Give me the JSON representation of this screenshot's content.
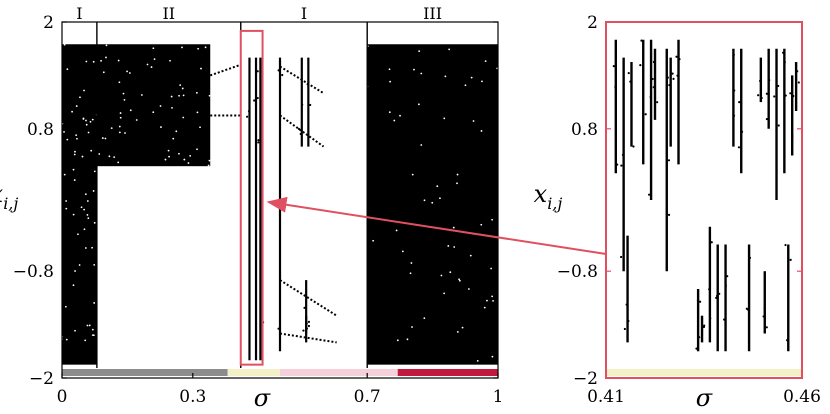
{
  "chart_data": [
    {
      "type": "scatter",
      "title": "",
      "xlabel": "σ",
      "ylabel": "x",
      "ylabel_subscript": "i,j",
      "xlim": [
        0,
        1
      ],
      "ylim": [
        -2,
        2
      ],
      "xticks": [
        {
          "value": 0,
          "label": "0"
        },
        {
          "value": 0.3,
          "label": "0.3"
        },
        {
          "value": 0.7,
          "label": "0.7"
        },
        {
          "value": 1,
          "label": "1"
        }
      ],
      "yticks": [
        {
          "value": 2,
          "label": "2"
        },
        {
          "value": 0.8,
          "label": "0.8"
        },
        {
          "value": -0.8,
          "label": "−0.8"
        },
        {
          "value": -2,
          "label": "−2"
        }
      ],
      "regions": [
        {
          "label": "I",
          "x_start": 0,
          "x_end": 0.08
        },
        {
          "label": "II",
          "x_start": 0.08,
          "x_end": 0.41
        },
        {
          "label": "I",
          "x_start": 0.41,
          "x_end": 0.7
        },
        {
          "label": "III",
          "x_start": 0.7,
          "x_end": 1
        }
      ],
      "region_boundaries": [
        0.08,
        0.41,
        0.7
      ],
      "color_bar": [
        {
          "x_start": 0,
          "x_end": 0.38,
          "color": "#8c8c8c"
        },
        {
          "x_start": 0.38,
          "x_end": 0.5,
          "color": "#f3f0c8"
        },
        {
          "x_start": 0.5,
          "x_end": 0.77,
          "color": "#f5cfd9"
        },
        {
          "x_start": 0.77,
          "x_end": 1,
          "color": "#c2193f"
        }
      ],
      "zoom_box": {
        "x_start": 0.41,
        "x_end": 0.46,
        "y_start": -1.85,
        "y_end": 1.9
      },
      "bands": [
        {
          "x_start": 0,
          "x_end": 0.08,
          "y_low": -1.85,
          "y_high": 1.75
        },
        {
          "x_start": 0.08,
          "x_end": 0.34,
          "y_low": 0.38,
          "y_high": 1.75
        },
        {
          "x_start": 0.7,
          "x_end": 1,
          "y_low": -1.85,
          "y_high": 1.75
        }
      ],
      "lines": [
        {
          "x_start": 0.34,
          "x_end": 0.41,
          "y_start": 1.4,
          "y_end": 1.52
        },
        {
          "x_start": 0.34,
          "x_end": 0.41,
          "y_start": 0.95,
          "y_end": 0.95
        },
        {
          "x_start": 0.5,
          "x_end": 0.6,
          "y_start": 1.5,
          "y_end": 1.2
        },
        {
          "x_start": 0.5,
          "x_end": 0.6,
          "y_start": 0.95,
          "y_end": 0.6
        },
        {
          "x_start": 0.5,
          "x_end": 0.63,
          "y_start": -0.9,
          "y_end": -1.3
        },
        {
          "x_start": 0.5,
          "x_end": 0.63,
          "y_start": -1.5,
          "y_end": -1.6
        }
      ],
      "columns": [
        {
          "x": 0.43,
          "y_low": -1.8,
          "y_high": 1.6
        },
        {
          "x": 0.445,
          "y_low": -1.8,
          "y_high": 1.6
        },
        {
          "x": 0.455,
          "y_low": -1.8,
          "y_high": 1.6
        },
        {
          "x": 0.5,
          "y_low": -1.7,
          "y_high": 1.6
        },
        {
          "x": 0.55,
          "y_low": 0.6,
          "y_high": 1.6
        },
        {
          "x": 0.56,
          "y_low": -1.5,
          "y_high": -0.9
        },
        {
          "x": 0.565,
          "y_low": 0.6,
          "y_high": 1.6
        },
        {
          "x": 0.56,
          "y_low": -1.6,
          "y_high": -1.3
        }
      ]
    },
    {
      "type": "scatter",
      "title": "",
      "xlabel": "σ",
      "ylabel": "x",
      "ylabel_subscript": "i,j",
      "xlim": [
        0.41,
        0.46
      ],
      "ylim": [
        -2,
        2
      ],
      "xticks": [
        {
          "value": 0.41,
          "label": "0.41"
        },
        {
          "value": 0.46,
          "label": "0.46"
        }
      ],
      "yticks": [
        {
          "value": 2,
          "label": "2"
        },
        {
          "value": 0.8,
          "label": "0.8"
        },
        {
          "value": -0.8,
          "label": "−0.8"
        },
        {
          "value": -2,
          "label": "−2"
        }
      ],
      "color_bar": [
        {
          "x_start": 0.41,
          "x_end": 0.46,
          "color": "#f3f0c8"
        }
      ],
      "frame_color": "#e05060",
      "columns": [
        {
          "x": 0.4125,
          "y_low": 0.3,
          "y_high": 1.8
        },
        {
          "x": 0.4145,
          "y_low": -0.8,
          "y_high": 1.6
        },
        {
          "x": 0.4155,
          "y_low": -1.6,
          "y_high": -0.4
        },
        {
          "x": 0.4165,
          "y_low": 0.6,
          "y_high": 1.55
        },
        {
          "x": 0.4195,
          "y_low": 0.4,
          "y_high": 1.8
        },
        {
          "x": 0.4215,
          "y_low": 0.0,
          "y_high": 1.8
        },
        {
          "x": 0.4225,
          "y_low": 0.9,
          "y_high": 1.7
        },
        {
          "x": 0.4255,
          "y_low": -0.8,
          "y_high": 1.7
        },
        {
          "x": 0.4265,
          "y_low": 0.6,
          "y_high": 1.6
        },
        {
          "x": 0.4285,
          "y_low": 0.4,
          "y_high": 1.8
        },
        {
          "x": 0.4335,
          "y_low": -1.7,
          "y_high": -1.0
        },
        {
          "x": 0.4345,
          "y_low": -1.6,
          "y_high": -1.3
        },
        {
          "x": 0.4365,
          "y_low": -1.6,
          "y_high": -0.3
        },
        {
          "x": 0.4385,
          "y_low": -1.7,
          "y_high": -0.5
        },
        {
          "x": 0.4405,
          "y_low": -1.7,
          "y_high": -0.5
        },
        {
          "x": 0.4425,
          "y_low": 0.6,
          "y_high": 1.7
        },
        {
          "x": 0.4445,
          "y_low": 0.3,
          "y_high": 1.7
        },
        {
          "x": 0.4465,
          "y_low": -1.7,
          "y_high": -0.5
        },
        {
          "x": 0.4495,
          "y_low": 1.1,
          "y_high": 1.6
        },
        {
          "x": 0.4505,
          "y_low": -1.5,
          "y_high": -0.8
        },
        {
          "x": 0.4515,
          "y_low": 0.8,
          "y_high": 1.7
        },
        {
          "x": 0.4535,
          "y_low": 0.0,
          "y_high": 1.7
        },
        {
          "x": 0.4555,
          "y_low": 0.3,
          "y_high": 1.7
        },
        {
          "x": 0.4565,
          "y_low": -1.7,
          "y_high": -0.5
        },
        {
          "x": 0.4575,
          "y_low": 0.5,
          "y_high": 1.4
        },
        {
          "x": 0.4585,
          "y_low": 1.0,
          "y_high": 1.55
        }
      ]
    }
  ]
}
